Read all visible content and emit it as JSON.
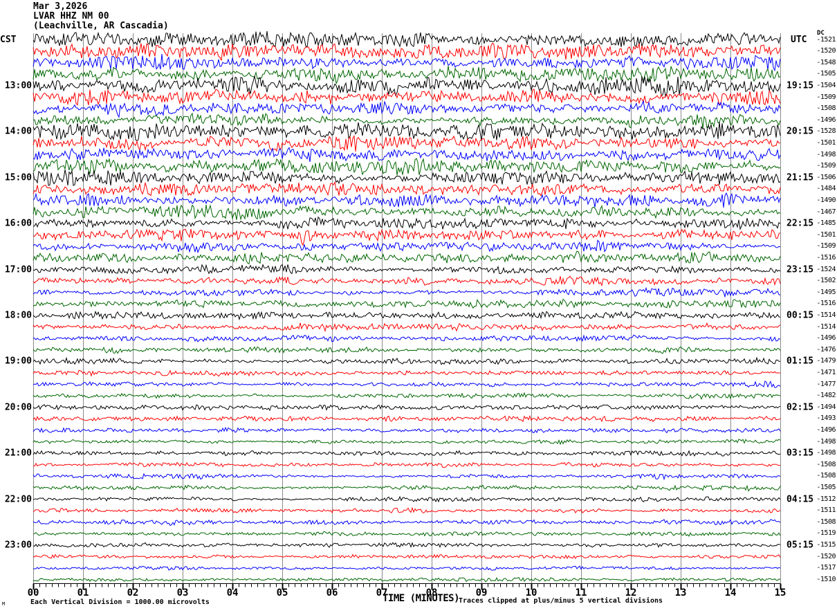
{
  "header": {
    "date": "Mar 3,2026",
    "station": "LVAR HHZ NM 00",
    "location": "(Leachville, AR Cascadia)"
  },
  "axes": {
    "left_timezone": "CST",
    "right_timezone": "UTC",
    "dc_column_label": "DC",
    "x_axis_title": "TIME (MINUTES)",
    "x_tick_labels": [
      "00",
      "01",
      "02",
      "03",
      "04",
      "05",
      "06",
      "07",
      "08",
      "09",
      "10",
      "11",
      "12",
      "13",
      "14",
      "15"
    ]
  },
  "footer": {
    "scale_note": "Each Vertical Division = 1000.00 microvolts",
    "clip_note": "Traces clipped at plus/minus 5 vertical divisions",
    "corner_mark": "M"
  },
  "chart_data": {
    "type": "line",
    "subtype": "helicorder-seismogram",
    "title": "LVAR HHZ NM 00 (Leachville, AR Cascadia) Mar 3,2026",
    "xlabel": "TIME (MINUTES)",
    "x_range_minutes": [
      0,
      15
    ],
    "minutes_per_line": 15,
    "grid": true,
    "grid_color": "#8a8a8a",
    "minor_ticks_per_minute": 8,
    "trace_color_cycle": [
      "#000000",
      "#ff0000",
      "#0000ff",
      "#006600"
    ],
    "left_axis_units": "CST clock time (hour labels on black traces)",
    "right_axis_units": "UTC clock time (line-end labels)",
    "dc_offset_units": "microvolts DC offset per trace",
    "rows": [
      {
        "cst": "",
        "utc": "",
        "dc": -1521,
        "color": 0,
        "amp": 10
      },
      {
        "cst": "",
        "utc": "",
        "dc": -1520,
        "color": 1,
        "amp": 10
      },
      {
        "cst": "",
        "utc": "",
        "dc": -1548,
        "color": 2,
        "amp": 9
      },
      {
        "cst": "",
        "utc": "",
        "dc": -1505,
        "color": 3,
        "amp": 9
      },
      {
        "cst": "13:00",
        "utc": "19:15",
        "dc": -1504,
        "color": 0,
        "amp": 11
      },
      {
        "cst": "",
        "utc": "",
        "dc": -1509,
        "color": 1,
        "amp": 10
      },
      {
        "cst": "",
        "utc": "",
        "dc": -1508,
        "color": 2,
        "amp": 10
      },
      {
        "cst": "",
        "utc": "",
        "dc": -1496,
        "color": 3,
        "amp": 9
      },
      {
        "cst": "14:00",
        "utc": "20:15",
        "dc": -1528,
        "color": 0,
        "amp": 11
      },
      {
        "cst": "",
        "utc": "",
        "dc": -1501,
        "color": 1,
        "amp": 10
      },
      {
        "cst": "",
        "utc": "",
        "dc": -1498,
        "color": 2,
        "amp": 9
      },
      {
        "cst": "",
        "utc": "",
        "dc": -1509,
        "color": 3,
        "amp": 10
      },
      {
        "cst": "15:00",
        "utc": "21:15",
        "dc": -1506,
        "color": 0,
        "amp": 10
      },
      {
        "cst": "",
        "utc": "",
        "dc": -1484,
        "color": 1,
        "amp": 9
      },
      {
        "cst": "",
        "utc": "",
        "dc": -1490,
        "color": 2,
        "amp": 9
      },
      {
        "cst": "",
        "utc": "",
        "dc": -1467,
        "color": 3,
        "amp": 8
      },
      {
        "cst": "16:00",
        "utc": "22:15",
        "dc": -1485,
        "color": 0,
        "amp": 8
      },
      {
        "cst": "",
        "utc": "",
        "dc": -1501,
        "color": 1,
        "amp": 8,
        "spike_min": 5.45
      },
      {
        "cst": "",
        "utc": "",
        "dc": -1509,
        "color": 2,
        "amp": 7
      },
      {
        "cst": "",
        "utc": "",
        "dc": -1516,
        "color": 3,
        "amp": 7
      },
      {
        "cst": "17:00",
        "utc": "23:15",
        "dc": -1524,
        "color": 0,
        "amp": 6
      },
      {
        "cst": "",
        "utc": "",
        "dc": -1502,
        "color": 1,
        "amp": 5.5
      },
      {
        "cst": "",
        "utc": "",
        "dc": -1495,
        "color": 2,
        "amp": 5
      },
      {
        "cst": "",
        "utc": "",
        "dc": -1516,
        "color": 3,
        "amp": 5
      },
      {
        "cst": "18:00",
        "utc": "00:15",
        "dc": -1514,
        "color": 0,
        "amp": 5
      },
      {
        "cst": "",
        "utc": "",
        "dc": -1514,
        "color": 1,
        "amp": 4.5
      },
      {
        "cst": "",
        "utc": "",
        "dc": -1496,
        "color": 2,
        "amp": 4
      },
      {
        "cst": "",
        "utc": "",
        "dc": -1476,
        "color": 3,
        "amp": 4
      },
      {
        "cst": "19:00",
        "utc": "01:15",
        "dc": -1479,
        "color": 0,
        "amp": 4
      },
      {
        "cst": "",
        "utc": "",
        "dc": -1471,
        "color": 1,
        "amp": 3.5
      },
      {
        "cst": "",
        "utc": "",
        "dc": -1477,
        "color": 2,
        "amp": 3.5
      },
      {
        "cst": "",
        "utc": "",
        "dc": -1482,
        "color": 3,
        "amp": 3.5
      },
      {
        "cst": "20:00",
        "utc": "02:15",
        "dc": -1494,
        "color": 0,
        "amp": 3.5
      },
      {
        "cst": "",
        "utc": "",
        "dc": -1493,
        "color": 1,
        "amp": 3.5
      },
      {
        "cst": "",
        "utc": "",
        "dc": -1496,
        "color": 2,
        "amp": 3
      },
      {
        "cst": "",
        "utc": "",
        "dc": -1498,
        "color": 3,
        "amp": 3
      },
      {
        "cst": "21:00",
        "utc": "03:15",
        "dc": -1498,
        "color": 0,
        "amp": 3.5
      },
      {
        "cst": "",
        "utc": "",
        "dc": -1508,
        "color": 1,
        "amp": 3
      },
      {
        "cst": "",
        "utc": "",
        "dc": -1508,
        "color": 2,
        "amp": 3
      },
      {
        "cst": "",
        "utc": "",
        "dc": -1505,
        "color": 3,
        "amp": 3
      },
      {
        "cst": "22:00",
        "utc": "04:15",
        "dc": -1512,
        "color": 0,
        "amp": 3
      },
      {
        "cst": "",
        "utc": "",
        "dc": -1511,
        "color": 1,
        "amp": 3
      },
      {
        "cst": "",
        "utc": "",
        "dc": -1508,
        "color": 2,
        "amp": 3
      },
      {
        "cst": "",
        "utc": "",
        "dc": -1519,
        "color": 3,
        "amp": 3
      },
      {
        "cst": "23:00",
        "utc": "05:15",
        "dc": -1515,
        "color": 0,
        "amp": 3
      },
      {
        "cst": "",
        "utc": "",
        "dc": -1520,
        "color": 1,
        "amp": 2.5
      },
      {
        "cst": "",
        "utc": "",
        "dc": -1517,
        "color": 2,
        "amp": 2.5
      },
      {
        "cst": "",
        "utc": "",
        "dc": -1510,
        "color": 3,
        "amp": 2.5
      }
    ]
  }
}
